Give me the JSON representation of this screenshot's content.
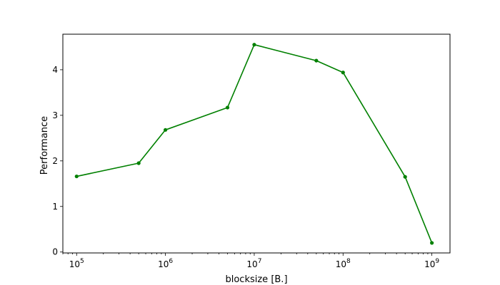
{
  "chart_data": {
    "type": "line",
    "title": "",
    "xlabel": "blocksize [B.]",
    "ylabel": "Performance",
    "x_scale": "log",
    "xlim": [
      70000,
      1600000000
    ],
    "ylim": [
      -0.02,
      4.78
    ],
    "grid": false,
    "legend": "none",
    "series": [
      {
        "color": "#008000",
        "marker": "circle",
        "x": [
          100000,
          500000,
          1000000,
          5000000,
          10000000,
          50000000,
          100000000,
          500000000,
          1000000000
        ],
        "y": [
          1.66,
          1.95,
          2.68,
          3.17,
          4.55,
          4.2,
          3.94,
          1.65,
          0.2
        ]
      }
    ],
    "x_ticks": [
      {
        "value": 100000,
        "base": "10",
        "exp": "5"
      },
      {
        "value": 1000000,
        "base": "10",
        "exp": "6"
      },
      {
        "value": 10000000,
        "base": "10",
        "exp": "7"
      },
      {
        "value": 100000000,
        "base": "10",
        "exp": "8"
      },
      {
        "value": 1000000000,
        "base": "10",
        "exp": "9"
      }
    ],
    "y_ticks": [
      {
        "value": 0,
        "label": "0"
      },
      {
        "value": 1,
        "label": "1"
      },
      {
        "value": 2,
        "label": "2"
      },
      {
        "value": 3,
        "label": "3"
      },
      {
        "value": 4,
        "label": "4"
      }
    ]
  }
}
